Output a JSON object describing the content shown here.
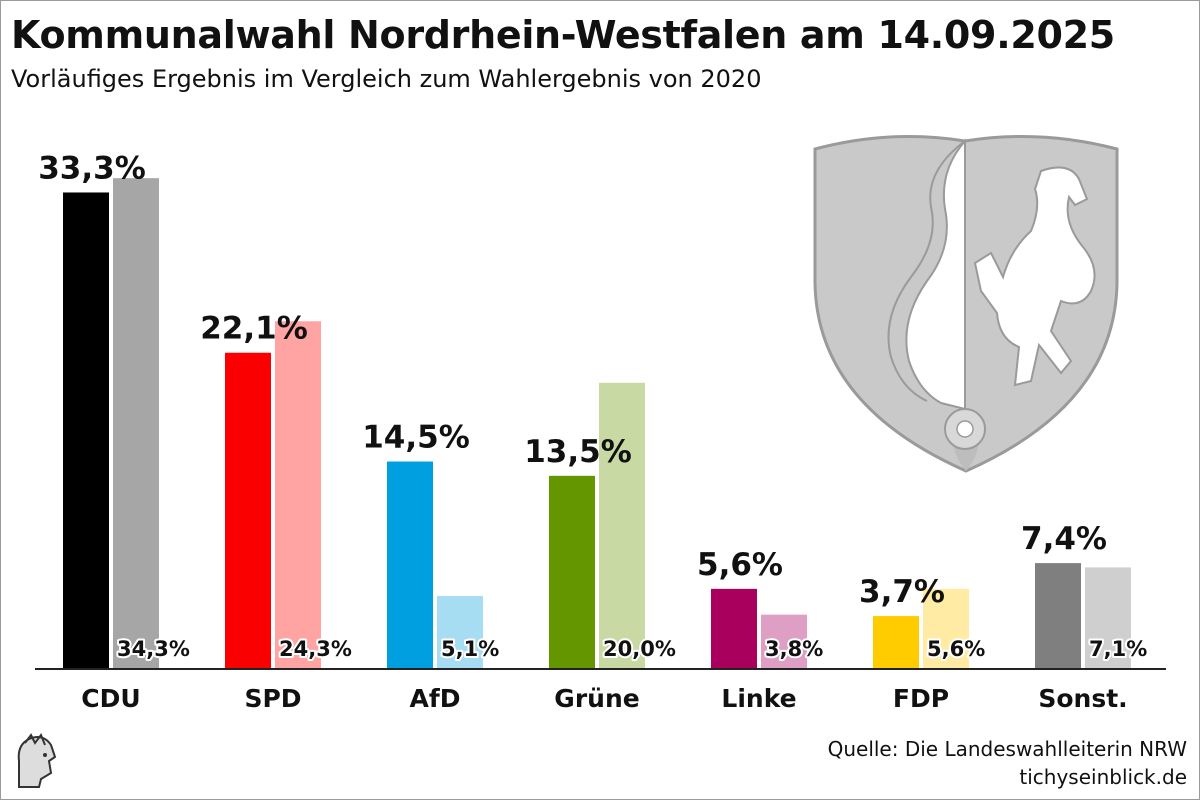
{
  "header": {
    "title": "Kommunalwahl Nordrhein-Westfalen am 14.09.2025",
    "subtitle": "Vorläufiges Ergebnis im Vergleich zum Wahlergebnis von 2020"
  },
  "footer": {
    "source": "Quelle: Die Landeswahlleiterin NRW",
    "site": "tichyseinblick.de"
  },
  "chart_data": {
    "type": "bar",
    "title": "Kommunalwahl Nordrhein-Westfalen am 14.09.2025",
    "subtitle": "Vorläufiges Ergebnis im Vergleich zum Wahlergebnis von 2020",
    "categories": [
      "CDU",
      "SPD",
      "AfD",
      "Grüne",
      "Linke",
      "FDP",
      "Sonst."
    ],
    "series": [
      {
        "name": "2025",
        "values": [
          33.3,
          22.1,
          14.5,
          13.5,
          5.6,
          3.7,
          7.4
        ],
        "labels": [
          "33,3%",
          "22,1%",
          "14,5%",
          "13,5%",
          "5,6%",
          "3,7%",
          "7,4%"
        ],
        "colors": [
          "#000000",
          "#fa0000",
          "#00a0e0",
          "#649600",
          "#a8005c",
          "#ffcc00",
          "#7f7f7f"
        ]
      },
      {
        "name": "2020",
        "values": [
          34.3,
          24.3,
          5.1,
          20.0,
          3.8,
          5.6,
          7.1
        ],
        "labels": [
          "34,3%",
          "24,3%",
          "5,1%",
          "20,0%",
          "3,8%",
          "5,6%",
          "7,1%"
        ],
        "colors": [
          "#a6a6a6",
          "#ffa3a3",
          "#a6ddf3",
          "#c8d9a4",
          "#df9ec4",
          "#ffeba3",
          "#cfcfcf"
        ]
      }
    ],
    "ylim": [
      0,
      35
    ],
    "xlabel": "",
    "ylabel": "",
    "grid": false,
    "legend": "none"
  },
  "logos": {
    "coat_of_arms": "nrw-coat-of-arms",
    "publisher_mark": "tichys-einblick-mark"
  }
}
